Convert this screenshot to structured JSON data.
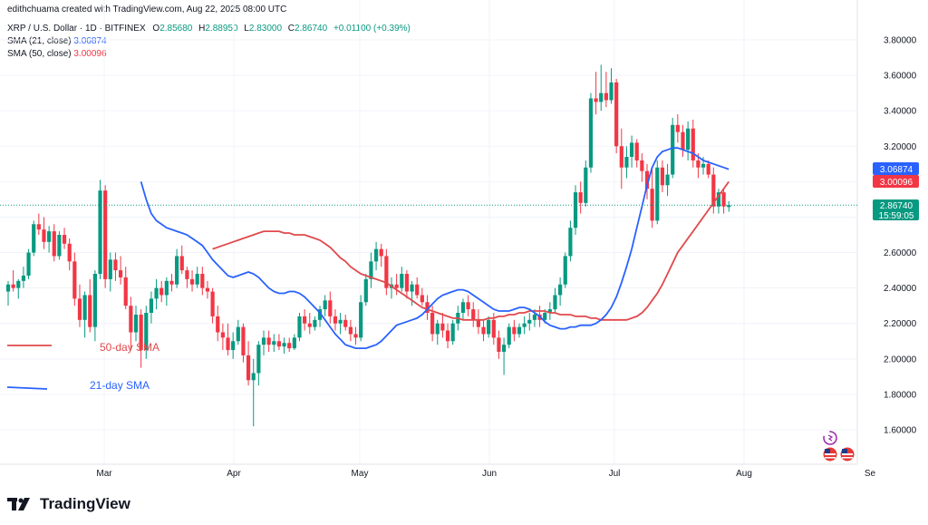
{
  "header": {
    "author_line": "edithchuama created with TradingView.com, Aug 22, 2025 08:00 UTC",
    "symbol": "XRP / U.S. Dollar · 1D · BITFINEX",
    "o_label": "O",
    "o_value": "2.85680",
    "h_label": "H",
    "h_value": "2.88950",
    "l_label": "L",
    "l_value": "2.83000",
    "c_label": "C",
    "c_value": "2.86740",
    "change": "+0.01100 (+0.39%)",
    "sma21_label": "SMA (21, close)",
    "sma21_value": "3.06874",
    "sma50_label": "SMA (50, close)",
    "sma50_value": "3.00096"
  },
  "annotations": {
    "sma50_note": "50-day SMA",
    "sma21_note": "21-day SMA"
  },
  "price_badges": {
    "sma21": "3.06874",
    "sma50": "3.00096",
    "last": "2.86740",
    "countdown": "15:59:05"
  },
  "brand": {
    "name": "TradingView"
  },
  "colors": {
    "up": "#089981",
    "down": "#f23645",
    "sma21": "#2962ff",
    "sma50": "#e0494c",
    "grid": "#f0f3fa",
    "text": "#131722"
  },
  "chart_data": {
    "type": "candlestick",
    "y_ticks": [
      "1.60000",
      "1.80000",
      "2.00000",
      "2.20000",
      "2.40000",
      "2.60000",
      "2.80000",
      "3.00000",
      "3.20000",
      "3.40000",
      "3.60000",
      "3.80000"
    ],
    "x_ticks": [
      "Mar",
      "Apr",
      "May",
      "Jun",
      "Jul",
      "Aug",
      "Se"
    ],
    "ylim": [
      1.45,
      3.92
    ],
    "last_close": 2.8674,
    "candles": [
      {
        "o": 2.38,
        "h": 2.44,
        "l": 2.3,
        "c": 2.42
      },
      {
        "o": 2.42,
        "h": 2.5,
        "l": 2.38,
        "c": 2.4
      },
      {
        "o": 2.4,
        "h": 2.45,
        "l": 2.34,
        "c": 2.44
      },
      {
        "o": 2.44,
        "h": 2.52,
        "l": 2.4,
        "c": 2.47
      },
      {
        "o": 2.47,
        "h": 2.62,
        "l": 2.45,
        "c": 2.6
      },
      {
        "o": 2.6,
        "h": 2.78,
        "l": 2.58,
        "c": 2.76
      },
      {
        "o": 2.76,
        "h": 2.82,
        "l": 2.7,
        "c": 2.73
      },
      {
        "o": 2.73,
        "h": 2.8,
        "l": 2.62,
        "c": 2.66
      },
      {
        "o": 2.66,
        "h": 2.75,
        "l": 2.6,
        "c": 2.72
      },
      {
        "o": 2.72,
        "h": 2.76,
        "l": 2.55,
        "c": 2.58
      },
      {
        "o": 2.58,
        "h": 2.72,
        "l": 2.56,
        "c": 2.7
      },
      {
        "o": 2.7,
        "h": 2.74,
        "l": 2.62,
        "c": 2.65
      },
      {
        "o": 2.65,
        "h": 2.68,
        "l": 2.5,
        "c": 2.55
      },
      {
        "o": 2.55,
        "h": 2.6,
        "l": 2.3,
        "c": 2.34
      },
      {
        "o": 2.34,
        "h": 2.42,
        "l": 2.18,
        "c": 2.22
      },
      {
        "o": 2.22,
        "h": 2.38,
        "l": 2.12,
        "c": 2.36
      },
      {
        "o": 2.36,
        "h": 2.45,
        "l": 2.15,
        "c": 2.18
      },
      {
        "o": 2.18,
        "h": 2.5,
        "l": 2.1,
        "c": 2.48
      },
      {
        "o": 2.48,
        "h": 3.01,
        "l": 2.45,
        "c": 2.95
      },
      {
        "o": 2.95,
        "h": 2.98,
        "l": 2.4,
        "c": 2.45
      },
      {
        "o": 2.45,
        "h": 2.6,
        "l": 2.38,
        "c": 2.56
      },
      {
        "o": 2.56,
        "h": 2.6,
        "l": 2.44,
        "c": 2.5
      },
      {
        "o": 2.5,
        "h": 2.58,
        "l": 2.42,
        "c": 2.46
      },
      {
        "o": 2.46,
        "h": 2.52,
        "l": 2.28,
        "c": 2.3
      },
      {
        "o": 2.3,
        "h": 2.35,
        "l": 2.05,
        "c": 2.15
      },
      {
        "o": 2.15,
        "h": 2.3,
        "l": 2.1,
        "c": 2.25
      },
      {
        "o": 2.25,
        "h": 2.28,
        "l": 1.95,
        "c": 2.05
      },
      {
        "o": 2.05,
        "h": 2.3,
        "l": 2.0,
        "c": 2.26
      },
      {
        "o": 2.26,
        "h": 2.38,
        "l": 2.2,
        "c": 2.34
      },
      {
        "o": 2.34,
        "h": 2.45,
        "l": 2.28,
        "c": 2.4
      },
      {
        "o": 2.4,
        "h": 2.44,
        "l": 2.32,
        "c": 2.36
      },
      {
        "o": 2.36,
        "h": 2.46,
        "l": 2.3,
        "c": 2.44
      },
      {
        "o": 2.44,
        "h": 2.48,
        "l": 2.38,
        "c": 2.42
      },
      {
        "o": 2.42,
        "h": 2.62,
        "l": 2.4,
        "c": 2.58
      },
      {
        "o": 2.58,
        "h": 2.64,
        "l": 2.48,
        "c": 2.5
      },
      {
        "o": 2.5,
        "h": 2.52,
        "l": 2.4,
        "c": 2.45
      },
      {
        "o": 2.45,
        "h": 2.5,
        "l": 2.38,
        "c": 2.42
      },
      {
        "o": 2.42,
        "h": 2.52,
        "l": 2.4,
        "c": 2.48
      },
      {
        "o": 2.48,
        "h": 2.52,
        "l": 2.36,
        "c": 2.4
      },
      {
        "o": 2.4,
        "h": 2.44,
        "l": 2.34,
        "c": 2.38
      },
      {
        "o": 2.38,
        "h": 2.4,
        "l": 2.2,
        "c": 2.24
      },
      {
        "o": 2.24,
        "h": 2.3,
        "l": 2.1,
        "c": 2.15
      },
      {
        "o": 2.15,
        "h": 2.2,
        "l": 2.05,
        "c": 2.12
      },
      {
        "o": 2.12,
        "h": 2.2,
        "l": 2.02,
        "c": 2.05
      },
      {
        "o": 2.05,
        "h": 2.15,
        "l": 2.0,
        "c": 2.1
      },
      {
        "o": 2.1,
        "h": 2.22,
        "l": 2.08,
        "c": 2.18
      },
      {
        "o": 2.18,
        "h": 2.2,
        "l": 1.98,
        "c": 2.02
      },
      {
        "o": 2.02,
        "h": 2.1,
        "l": 1.85,
        "c": 1.88
      },
      {
        "o": 1.88,
        "h": 2.0,
        "l": 1.62,
        "c": 1.92
      },
      {
        "o": 1.92,
        "h": 2.1,
        "l": 1.85,
        "c": 2.08
      },
      {
        "o": 2.08,
        "h": 2.16,
        "l": 2.02,
        "c": 2.12
      },
      {
        "o": 2.12,
        "h": 2.16,
        "l": 2.04,
        "c": 2.08
      },
      {
        "o": 2.08,
        "h": 2.14,
        "l": 2.04,
        "c": 2.1
      },
      {
        "o": 2.1,
        "h": 2.14,
        "l": 2.05,
        "c": 2.07
      },
      {
        "o": 2.07,
        "h": 2.12,
        "l": 2.03,
        "c": 2.09
      },
      {
        "o": 2.09,
        "h": 2.12,
        "l": 2.04,
        "c": 2.06
      },
      {
        "o": 2.06,
        "h": 2.14,
        "l": 2.05,
        "c": 2.12
      },
      {
        "o": 2.12,
        "h": 2.26,
        "l": 2.1,
        "c": 2.24
      },
      {
        "o": 2.24,
        "h": 2.28,
        "l": 2.16,
        "c": 2.2
      },
      {
        "o": 2.2,
        "h": 2.26,
        "l": 2.14,
        "c": 2.18
      },
      {
        "o": 2.18,
        "h": 2.24,
        "l": 2.16,
        "c": 2.22
      },
      {
        "o": 2.22,
        "h": 2.3,
        "l": 2.18,
        "c": 2.28
      },
      {
        "o": 2.28,
        "h": 2.36,
        "l": 2.24,
        "c": 2.33
      },
      {
        "o": 2.33,
        "h": 2.38,
        "l": 2.2,
        "c": 2.24
      },
      {
        "o": 2.24,
        "h": 2.28,
        "l": 2.16,
        "c": 2.2
      },
      {
        "o": 2.2,
        "h": 2.26,
        "l": 2.14,
        "c": 2.22
      },
      {
        "o": 2.22,
        "h": 2.25,
        "l": 2.16,
        "c": 2.18
      },
      {
        "o": 2.18,
        "h": 2.22,
        "l": 2.1,
        "c": 2.14
      },
      {
        "o": 2.14,
        "h": 2.18,
        "l": 2.08,
        "c": 2.12
      },
      {
        "o": 2.12,
        "h": 2.36,
        "l": 2.1,
        "c": 2.32
      },
      {
        "o": 2.32,
        "h": 2.48,
        "l": 2.3,
        "c": 2.45
      },
      {
        "o": 2.45,
        "h": 2.6,
        "l": 2.4,
        "c": 2.55
      },
      {
        "o": 2.55,
        "h": 2.66,
        "l": 2.5,
        "c": 2.62
      },
      {
        "o": 2.62,
        "h": 2.65,
        "l": 2.52,
        "c": 2.58
      },
      {
        "o": 2.58,
        "h": 2.62,
        "l": 2.36,
        "c": 2.4
      },
      {
        "o": 2.4,
        "h": 2.46,
        "l": 2.34,
        "c": 2.42
      },
      {
        "o": 2.42,
        "h": 2.48,
        "l": 2.36,
        "c": 2.4
      },
      {
        "o": 2.4,
        "h": 2.52,
        "l": 2.38,
        "c": 2.48
      },
      {
        "o": 2.48,
        "h": 2.5,
        "l": 2.34,
        "c": 2.38
      },
      {
        "o": 2.38,
        "h": 2.44,
        "l": 2.3,
        "c": 2.42
      },
      {
        "o": 2.42,
        "h": 2.46,
        "l": 2.34,
        "c": 2.36
      },
      {
        "o": 2.36,
        "h": 2.4,
        "l": 2.3,
        "c": 2.32
      },
      {
        "o": 2.32,
        "h": 2.36,
        "l": 2.22,
        "c": 2.26
      },
      {
        "o": 2.26,
        "h": 2.3,
        "l": 2.1,
        "c": 2.14
      },
      {
        "o": 2.14,
        "h": 2.22,
        "l": 2.08,
        "c": 2.2
      },
      {
        "o": 2.2,
        "h": 2.26,
        "l": 2.12,
        "c": 2.16
      },
      {
        "o": 2.16,
        "h": 2.2,
        "l": 2.06,
        "c": 2.1
      },
      {
        "o": 2.1,
        "h": 2.22,
        "l": 2.08,
        "c": 2.2
      },
      {
        "o": 2.2,
        "h": 2.3,
        "l": 2.16,
        "c": 2.26
      },
      {
        "o": 2.26,
        "h": 2.34,
        "l": 2.22,
        "c": 2.32
      },
      {
        "o": 2.32,
        "h": 2.36,
        "l": 2.24,
        "c": 2.28
      },
      {
        "o": 2.28,
        "h": 2.32,
        "l": 2.18,
        "c": 2.22
      },
      {
        "o": 2.22,
        "h": 2.28,
        "l": 2.14,
        "c": 2.18
      },
      {
        "o": 2.18,
        "h": 2.22,
        "l": 2.1,
        "c": 2.14
      },
      {
        "o": 2.14,
        "h": 2.24,
        "l": 2.12,
        "c": 2.22
      },
      {
        "o": 2.22,
        "h": 2.26,
        "l": 2.08,
        "c": 2.12
      },
      {
        "o": 2.12,
        "h": 2.16,
        "l": 2.0,
        "c": 2.04
      },
      {
        "o": 2.04,
        "h": 2.12,
        "l": 1.91,
        "c": 2.08
      },
      {
        "o": 2.08,
        "h": 2.2,
        "l": 2.06,
        "c": 2.18
      },
      {
        "o": 2.18,
        "h": 2.22,
        "l": 2.1,
        "c": 2.14
      },
      {
        "o": 2.14,
        "h": 2.2,
        "l": 2.12,
        "c": 2.18
      },
      {
        "o": 2.18,
        "h": 2.24,
        "l": 2.14,
        "c": 2.2
      },
      {
        "o": 2.2,
        "h": 2.26,
        "l": 2.16,
        "c": 2.22
      },
      {
        "o": 2.22,
        "h": 2.28,
        "l": 2.18,
        "c": 2.25
      },
      {
        "o": 2.25,
        "h": 2.3,
        "l": 2.18,
        "c": 2.22
      },
      {
        "o": 2.22,
        "h": 2.28,
        "l": 2.2,
        "c": 2.26
      },
      {
        "o": 2.26,
        "h": 2.32,
        "l": 2.22,
        "c": 2.28
      },
      {
        "o": 2.28,
        "h": 2.4,
        "l": 2.26,
        "c": 2.36
      },
      {
        "o": 2.36,
        "h": 2.46,
        "l": 2.3,
        "c": 2.42
      },
      {
        "o": 2.42,
        "h": 2.6,
        "l": 2.4,
        "c": 2.58
      },
      {
        "o": 2.58,
        "h": 2.78,
        "l": 2.55,
        "c": 2.74
      },
      {
        "o": 2.74,
        "h": 2.98,
        "l": 2.7,
        "c": 2.94
      },
      {
        "o": 2.94,
        "h": 3.0,
        "l": 2.82,
        "c": 2.88
      },
      {
        "o": 2.88,
        "h": 3.12,
        "l": 2.86,
        "c": 3.08
      },
      {
        "o": 3.08,
        "h": 3.5,
        "l": 3.05,
        "c": 3.47
      },
      {
        "o": 3.47,
        "h": 3.62,
        "l": 3.38,
        "c": 3.45
      },
      {
        "o": 3.45,
        "h": 3.66,
        "l": 3.4,
        "c": 3.5
      },
      {
        "o": 3.5,
        "h": 3.62,
        "l": 3.42,
        "c": 3.46
      },
      {
        "o": 3.46,
        "h": 3.64,
        "l": 3.44,
        "c": 3.56
      },
      {
        "o": 3.56,
        "h": 3.58,
        "l": 3.16,
        "c": 3.2
      },
      {
        "o": 3.2,
        "h": 3.3,
        "l": 2.96,
        "c": 3.08
      },
      {
        "o": 3.08,
        "h": 3.2,
        "l": 3.02,
        "c": 3.14
      },
      {
        "o": 3.14,
        "h": 3.26,
        "l": 3.08,
        "c": 3.22
      },
      {
        "o": 3.22,
        "h": 3.24,
        "l": 3.08,
        "c": 3.12
      },
      {
        "o": 3.12,
        "h": 3.16,
        "l": 3.0,
        "c": 3.06
      },
      {
        "o": 3.06,
        "h": 3.1,
        "l": 2.9,
        "c": 2.96
      },
      {
        "o": 2.96,
        "h": 3.08,
        "l": 2.74,
        "c": 2.78
      },
      {
        "o": 2.78,
        "h": 3.12,
        "l": 2.76,
        "c": 3.08
      },
      {
        "o": 3.08,
        "h": 3.12,
        "l": 2.94,
        "c": 2.98
      },
      {
        "o": 2.98,
        "h": 3.1,
        "l": 2.92,
        "c": 3.04
      },
      {
        "o": 3.04,
        "h": 3.36,
        "l": 3.02,
        "c": 3.32
      },
      {
        "o": 3.32,
        "h": 3.38,
        "l": 3.22,
        "c": 3.28
      },
      {
        "o": 3.28,
        "h": 3.32,
        "l": 3.14,
        "c": 3.18
      },
      {
        "o": 3.18,
        "h": 3.34,
        "l": 3.12,
        "c": 3.3
      },
      {
        "o": 3.3,
        "h": 3.35,
        "l": 3.08,
        "c": 3.12
      },
      {
        "o": 3.12,
        "h": 3.16,
        "l": 3.02,
        "c": 3.08
      },
      {
        "o": 3.08,
        "h": 3.14,
        "l": 3.04,
        "c": 3.1
      },
      {
        "o": 3.1,
        "h": 3.12,
        "l": 3.02,
        "c": 3.04
      },
      {
        "o": 3.04,
        "h": 3.08,
        "l": 2.82,
        "c": 2.86
      },
      {
        "o": 2.86,
        "h": 2.96,
        "l": 2.82,
        "c": 2.94
      },
      {
        "o": 2.94,
        "h": 2.96,
        "l": 2.82,
        "c": 2.86
      },
      {
        "o": 2.8568,
        "h": 2.8895,
        "l": 2.83,
        "c": 2.8674
      }
    ],
    "series": [
      {
        "name": "SMA (21, close)",
        "values": [
          3.0,
          2.9,
          2.82,
          2.78,
          2.76,
          2.74,
          2.73,
          2.72,
          2.71,
          2.7,
          2.68,
          2.66,
          2.64,
          2.6,
          2.56,
          2.53,
          2.5,
          2.47,
          2.46,
          2.47,
          2.48,
          2.49,
          2.48,
          2.46,
          2.43,
          2.4,
          2.38,
          2.37,
          2.37,
          2.38,
          2.38,
          2.37,
          2.35,
          2.32,
          2.29,
          2.26,
          2.22,
          2.18,
          2.14,
          2.11,
          2.08,
          2.07,
          2.06,
          2.06,
          2.06,
          2.07,
          2.08,
          2.1,
          2.13,
          2.16,
          2.19,
          2.2,
          2.21,
          2.22,
          2.23,
          2.25,
          2.28,
          2.31,
          2.34,
          2.36,
          2.37,
          2.38,
          2.39,
          2.39,
          2.38,
          2.36,
          2.34,
          2.32,
          2.3,
          2.28,
          2.27,
          2.27,
          2.27,
          2.28,
          2.29,
          2.29,
          2.28,
          2.26,
          2.24,
          2.21,
          2.19,
          2.18,
          2.17,
          2.17,
          2.18,
          2.18,
          2.19,
          2.19,
          2.19,
          2.2,
          2.22,
          2.25,
          2.29,
          2.35,
          2.43,
          2.52,
          2.62,
          2.74,
          2.86,
          2.98,
          3.08,
          3.14,
          3.17,
          3.18,
          3.19,
          3.19,
          3.18,
          3.17,
          3.16,
          3.14,
          3.12,
          3.11,
          3.1,
          3.09,
          3.08,
          3.07
        ]
      },
      {
        "name": "SMA (50, close)",
        "values": [
          2.62,
          2.63,
          2.64,
          2.65,
          2.66,
          2.67,
          2.68,
          2.69,
          2.7,
          2.71,
          2.72,
          2.72,
          2.72,
          2.72,
          2.71,
          2.71,
          2.7,
          2.7,
          2.7,
          2.69,
          2.68,
          2.67,
          2.65,
          2.63,
          2.6,
          2.57,
          2.55,
          2.52,
          2.5,
          2.48,
          2.47,
          2.46,
          2.45,
          2.44,
          2.43,
          2.41,
          2.39,
          2.37,
          2.35,
          2.33,
          2.31,
          2.29,
          2.28,
          2.27,
          2.26,
          2.25,
          2.24,
          2.23,
          2.23,
          2.22,
          2.22,
          2.22,
          2.22,
          2.22,
          2.23,
          2.23,
          2.24,
          2.24,
          2.25,
          2.25,
          2.26,
          2.26,
          2.27,
          2.27,
          2.27,
          2.27,
          2.26,
          2.26,
          2.25,
          2.25,
          2.25,
          2.24,
          2.24,
          2.24,
          2.23,
          2.23,
          2.22,
          2.22,
          2.22,
          2.22,
          2.22,
          2.22,
          2.23,
          2.24,
          2.26,
          2.29,
          2.33,
          2.37,
          2.42,
          2.48,
          2.54,
          2.6,
          2.64,
          2.68,
          2.72,
          2.76,
          2.8,
          2.84,
          2.88,
          2.92,
          2.96,
          3.0
        ]
      }
    ]
  }
}
